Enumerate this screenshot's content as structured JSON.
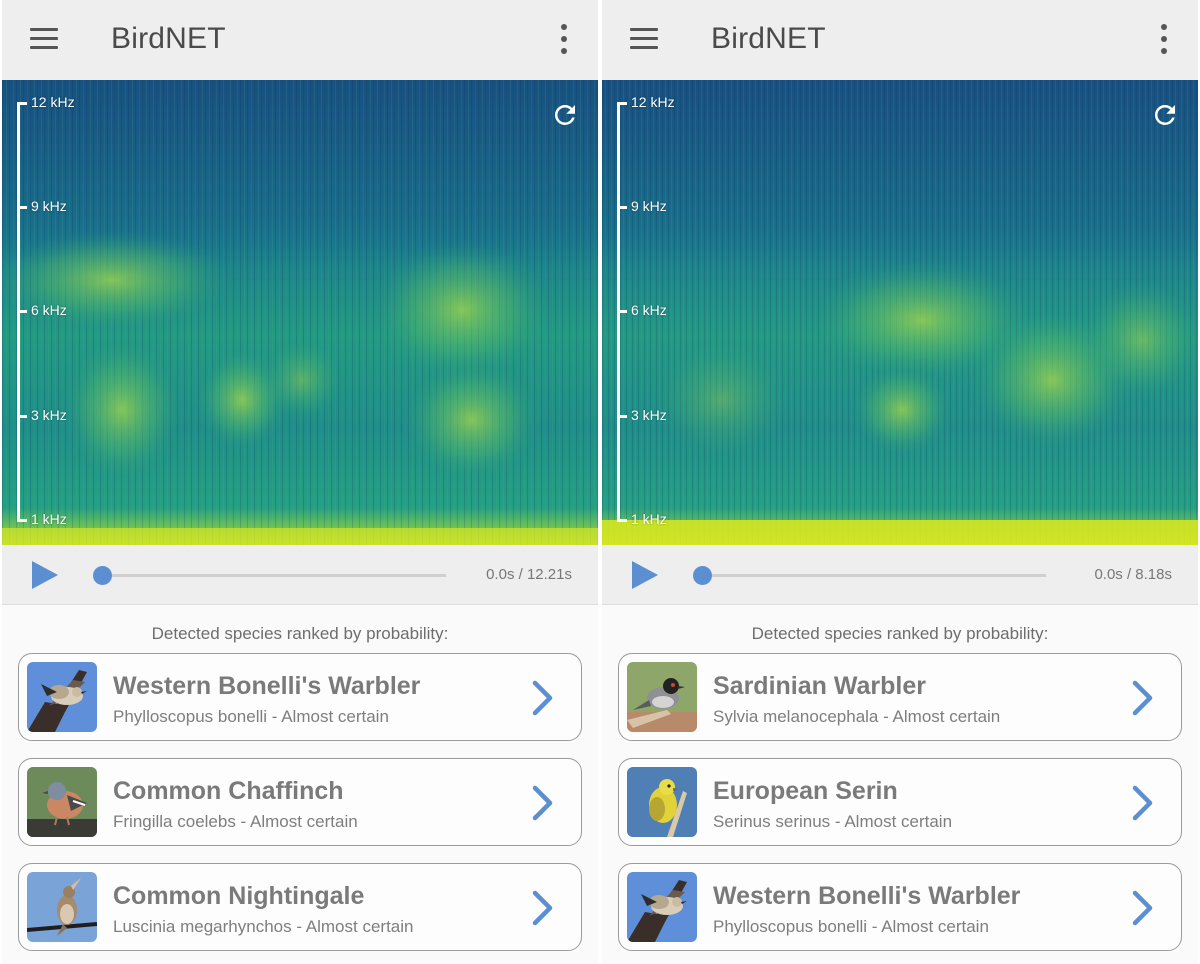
{
  "screens": [
    {
      "app_title": "BirdNET",
      "freq_labels": [
        "12 kHz",
        "9 kHz",
        "6 kHz",
        "3 kHz",
        "1 kHz"
      ],
      "time": "0.0s / 12.21s",
      "progress": 0.0,
      "results_caption": "Detected species ranked by probability:",
      "results": [
        {
          "common": "Western Bonelli's Warbler",
          "sci_line": "Phylloscopus bonelli - Almost certain",
          "thumb": "warbler-on-branch"
        },
        {
          "common": "Common Chaffinch",
          "sci_line": "Fringilla coelebs - Almost certain",
          "thumb": "chaffinch"
        },
        {
          "common": "Common Nightingale",
          "sci_line": "Luscinia megarhynchos - Almost certain",
          "thumb": "nightingale-on-wire"
        }
      ]
    },
    {
      "app_title": "BirdNET",
      "freq_labels": [
        "12 kHz",
        "9 kHz",
        "6 kHz",
        "3 kHz",
        "1 kHz"
      ],
      "time": "0.0s / 8.18s",
      "progress": 0.0,
      "results_caption": "Detected species ranked by probability:",
      "results": [
        {
          "common": "Sardinian Warbler",
          "sci_line": "Sylvia melanocephala - Almost certain",
          "thumb": "sardinian-warbler"
        },
        {
          "common": "European Serin",
          "sci_line": "Serinus serinus - Almost certain",
          "thumb": "serin"
        },
        {
          "common": "Western Bonelli's Warbler",
          "sci_line": "Phylloscopus bonelli - Almost certain",
          "thumb": "warbler-on-branch"
        }
      ]
    }
  ],
  "icons": {
    "menu": "hamburger-menu-icon",
    "more": "more-vert-icon",
    "refresh": "refresh-icon",
    "play": "play-icon",
    "chevron": "chevron-right-icon"
  },
  "colors": {
    "accent": "#5b8fd2",
    "appbar": "#eeeeee",
    "spectrogram_dark": "#1b6a8c",
    "spectrogram_bright": "#d7e522"
  }
}
